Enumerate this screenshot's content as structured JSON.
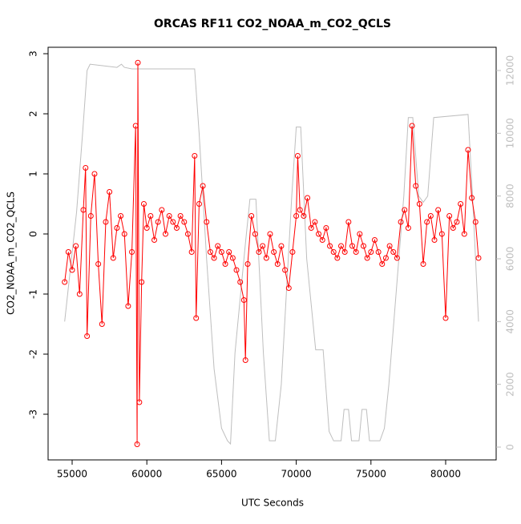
{
  "chart_data": {
    "type": "line",
    "title": "ORCAS RF11 CO2_NOAA_m_CO2_QCLS",
    "x_label": "UTC Seconds",
    "y_label": "CO2_NOAA_m_CO2_QCLS",
    "xlim": [
      53391,
      83380
    ],
    "xticks": [
      55000,
      60000,
      65000,
      70000,
      75000,
      80000
    ],
    "ylim": [
      -3.76,
      3.107
    ],
    "yticks": [
      -3,
      -2,
      -1,
      0,
      1,
      2,
      3
    ],
    "y2lim": [
      -408,
      12740
    ],
    "y2ticks": [
      0,
      2000,
      4000,
      6000,
      8000,
      10000,
      12000
    ],
    "series": [
      {
        "color": "#ff0000",
        "markers": true,
        "x": [
          54500,
          54750,
          55000,
          55250,
          55500,
          55750,
          55900,
          56000,
          56250,
          56500,
          56750,
          57000,
          57250,
          57500,
          57750,
          58000,
          58250,
          58500,
          58750,
          59000,
          59250,
          59350,
          59400,
          59500,
          59650,
          59800,
          60000,
          60250,
          60500,
          60750,
          61000,
          61250,
          61500,
          61750,
          62000,
          62250,
          62500,
          62750,
          63000,
          63200,
          63300,
          63500,
          63750,
          64000,
          64250,
          64500,
          64750,
          65000,
          65250,
          65500,
          65750,
          66000,
          66250,
          66500,
          66600,
          66750,
          67000,
          67250,
          67500,
          67750,
          68000,
          68250,
          68500,
          68750,
          69000,
          69250,
          69500,
          69750,
          70000,
          70100,
          70250,
          70500,
          70750,
          71000,
          71250,
          71500,
          71750,
          72000,
          72250,
          72500,
          72750,
          73000,
          73250,
          73500,
          73750,
          74000,
          74250,
          74500,
          74750,
          75000,
          75250,
          75500,
          75750,
          76000,
          76250,
          76500,
          76750,
          77000,
          77250,
          77500,
          77750,
          78000,
          78250,
          78500,
          78750,
          79000,
          79250,
          79500,
          79750,
          80000,
          80250,
          80500,
          80750,
          81000,
          81250,
          81500,
          81750,
          82000,
          82200
        ],
        "values": [
          -0.8,
          -0.3,
          -0.6,
          -0.2,
          -1.0,
          0.4,
          1.1,
          -1.7,
          0.3,
          1.0,
          -0.5,
          -1.5,
          0.2,
          0.7,
          -0.4,
          0.1,
          0.3,
          0.0,
          -1.2,
          -0.3,
          1.8,
          -3.5,
          2.85,
          -2.8,
          -0.8,
          0.5,
          0.1,
          0.3,
          -0.1,
          0.2,
          0.4,
          0.0,
          0.3,
          0.2,
          0.1,
          0.3,
          0.2,
          0.0,
          -0.3,
          1.3,
          -1.4,
          0.5,
          0.8,
          0.2,
          -0.3,
          -0.4,
          -0.2,
          -0.3,
          -0.5,
          -0.3,
          -0.4,
          -0.6,
          -0.8,
          -1.1,
          -2.1,
          -0.5,
          0.3,
          0.0,
          -0.3,
          -0.2,
          -0.4,
          0.0,
          -0.3,
          -0.5,
          -0.2,
          -0.6,
          -0.9,
          -0.3,
          0.3,
          1.3,
          0.4,
          0.3,
          0.6,
          0.1,
          0.2,
          0.0,
          -0.1,
          0.1,
          -0.2,
          -0.3,
          -0.4,
          -0.2,
          -0.3,
          0.2,
          -0.2,
          -0.3,
          0.0,
          -0.2,
          -0.4,
          -0.3,
          -0.1,
          -0.3,
          -0.5,
          -0.4,
          -0.2,
          -0.3,
          -0.4,
          0.2,
          0.4,
          0.1,
          1.8,
          0.8,
          0.5,
          -0.5,
          0.2,
          0.3,
          -0.1,
          0.4,
          0.0,
          -1.4,
          0.3,
          0.1,
          0.2,
          0.5,
          0.0,
          1.4,
          0.6,
          0.2,
          -0.4
        ]
      },
      {
        "color": "#bebebe",
        "axis": "y2",
        "markers": false,
        "x": [
          54500,
          55300,
          55700,
          56000,
          56200,
          58000,
          58300,
          58500,
          59000,
          63200,
          63500,
          64000,
          64500,
          65000,
          65400,
          65600,
          65900,
          66600,
          66900,
          67300,
          67800,
          68200,
          68600,
          69000,
          69700,
          70000,
          70300,
          70700,
          71300,
          71800,
          72200,
          72500,
          73000,
          73200,
          73500,
          73700,
          74200,
          74400,
          74700,
          74900,
          75600,
          75900,
          76200,
          77200,
          77500,
          77800,
          78200,
          78500,
          78800,
          79200,
          81500,
          81800,
          82200
        ],
        "values": [
          4000,
          7500,
          10000,
          12000,
          12200,
          12100,
          12200,
          12100,
          12050,
          12050,
          10000,
          6000,
          2500,
          600,
          200,
          100,
          3000,
          6500,
          7900,
          7900,
          3000,
          200,
          200,
          2000,
          8000,
          10200,
          10200,
          6000,
          3100,
          3100,
          500,
          200,
          200,
          1200,
          1200,
          200,
          200,
          1200,
          1200,
          200,
          200,
          600,
          2000,
          8000,
          10500,
          10500,
          8000,
          7800,
          8000,
          10500,
          10600,
          8000,
          4000
        ]
      }
    ]
  }
}
